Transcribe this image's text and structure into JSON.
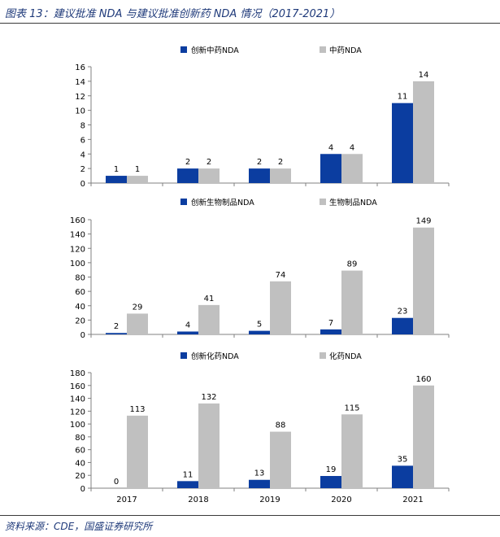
{
  "caption": "图表 13：建议批准 NDA 与建议批准创新药 NDA 情况（2017-2021）",
  "source": "资料来源：CDE，国盛证券研究所",
  "colors": {
    "innovative": "#0b3da0",
    "total": "#c0c0c0",
    "axis": "#808080",
    "text": "#000000"
  },
  "chart_data": [
    {
      "type": "bar",
      "categories": [
        "2017",
        "2018",
        "2019",
        "2020",
        "2021"
      ],
      "series": [
        {
          "name": "创新中药NDA",
          "values": [
            1,
            2,
            2,
            4,
            11
          ]
        },
        {
          "name": "中药NDA",
          "values": [
            1,
            2,
            2,
            4,
            14
          ]
        }
      ],
      "ylim": [
        0,
        16
      ],
      "yticks": [
        0,
        2,
        4,
        6,
        8,
        10,
        12,
        14,
        16
      ],
      "legend": "top",
      "grid": false
    },
    {
      "type": "bar",
      "categories": [
        "2017",
        "2018",
        "2019",
        "2020",
        "2021"
      ],
      "series": [
        {
          "name": "创新生物制品NDA",
          "values": [
            2,
            4,
            5,
            7,
            23
          ]
        },
        {
          "name": "生物制品NDA",
          "values": [
            29,
            41,
            74,
            89,
            149
          ]
        }
      ],
      "ylim": [
        0,
        160
      ],
      "yticks": [
        0,
        20,
        40,
        60,
        80,
        100,
        120,
        140,
        160
      ],
      "legend": "top",
      "grid": false
    },
    {
      "type": "bar",
      "categories": [
        "2017",
        "2018",
        "2019",
        "2020",
        "2021"
      ],
      "series": [
        {
          "name": "创新化药NDA",
          "values": [
            0,
            11,
            13,
            19,
            35
          ]
        },
        {
          "name": "化药NDA",
          "values": [
            113,
            132,
            88,
            115,
            160
          ]
        }
      ],
      "ylim": [
        0,
        180
      ],
      "yticks": [
        0,
        20,
        40,
        60,
        80,
        100,
        120,
        140,
        160,
        180
      ],
      "legend": "top",
      "grid": false
    }
  ]
}
